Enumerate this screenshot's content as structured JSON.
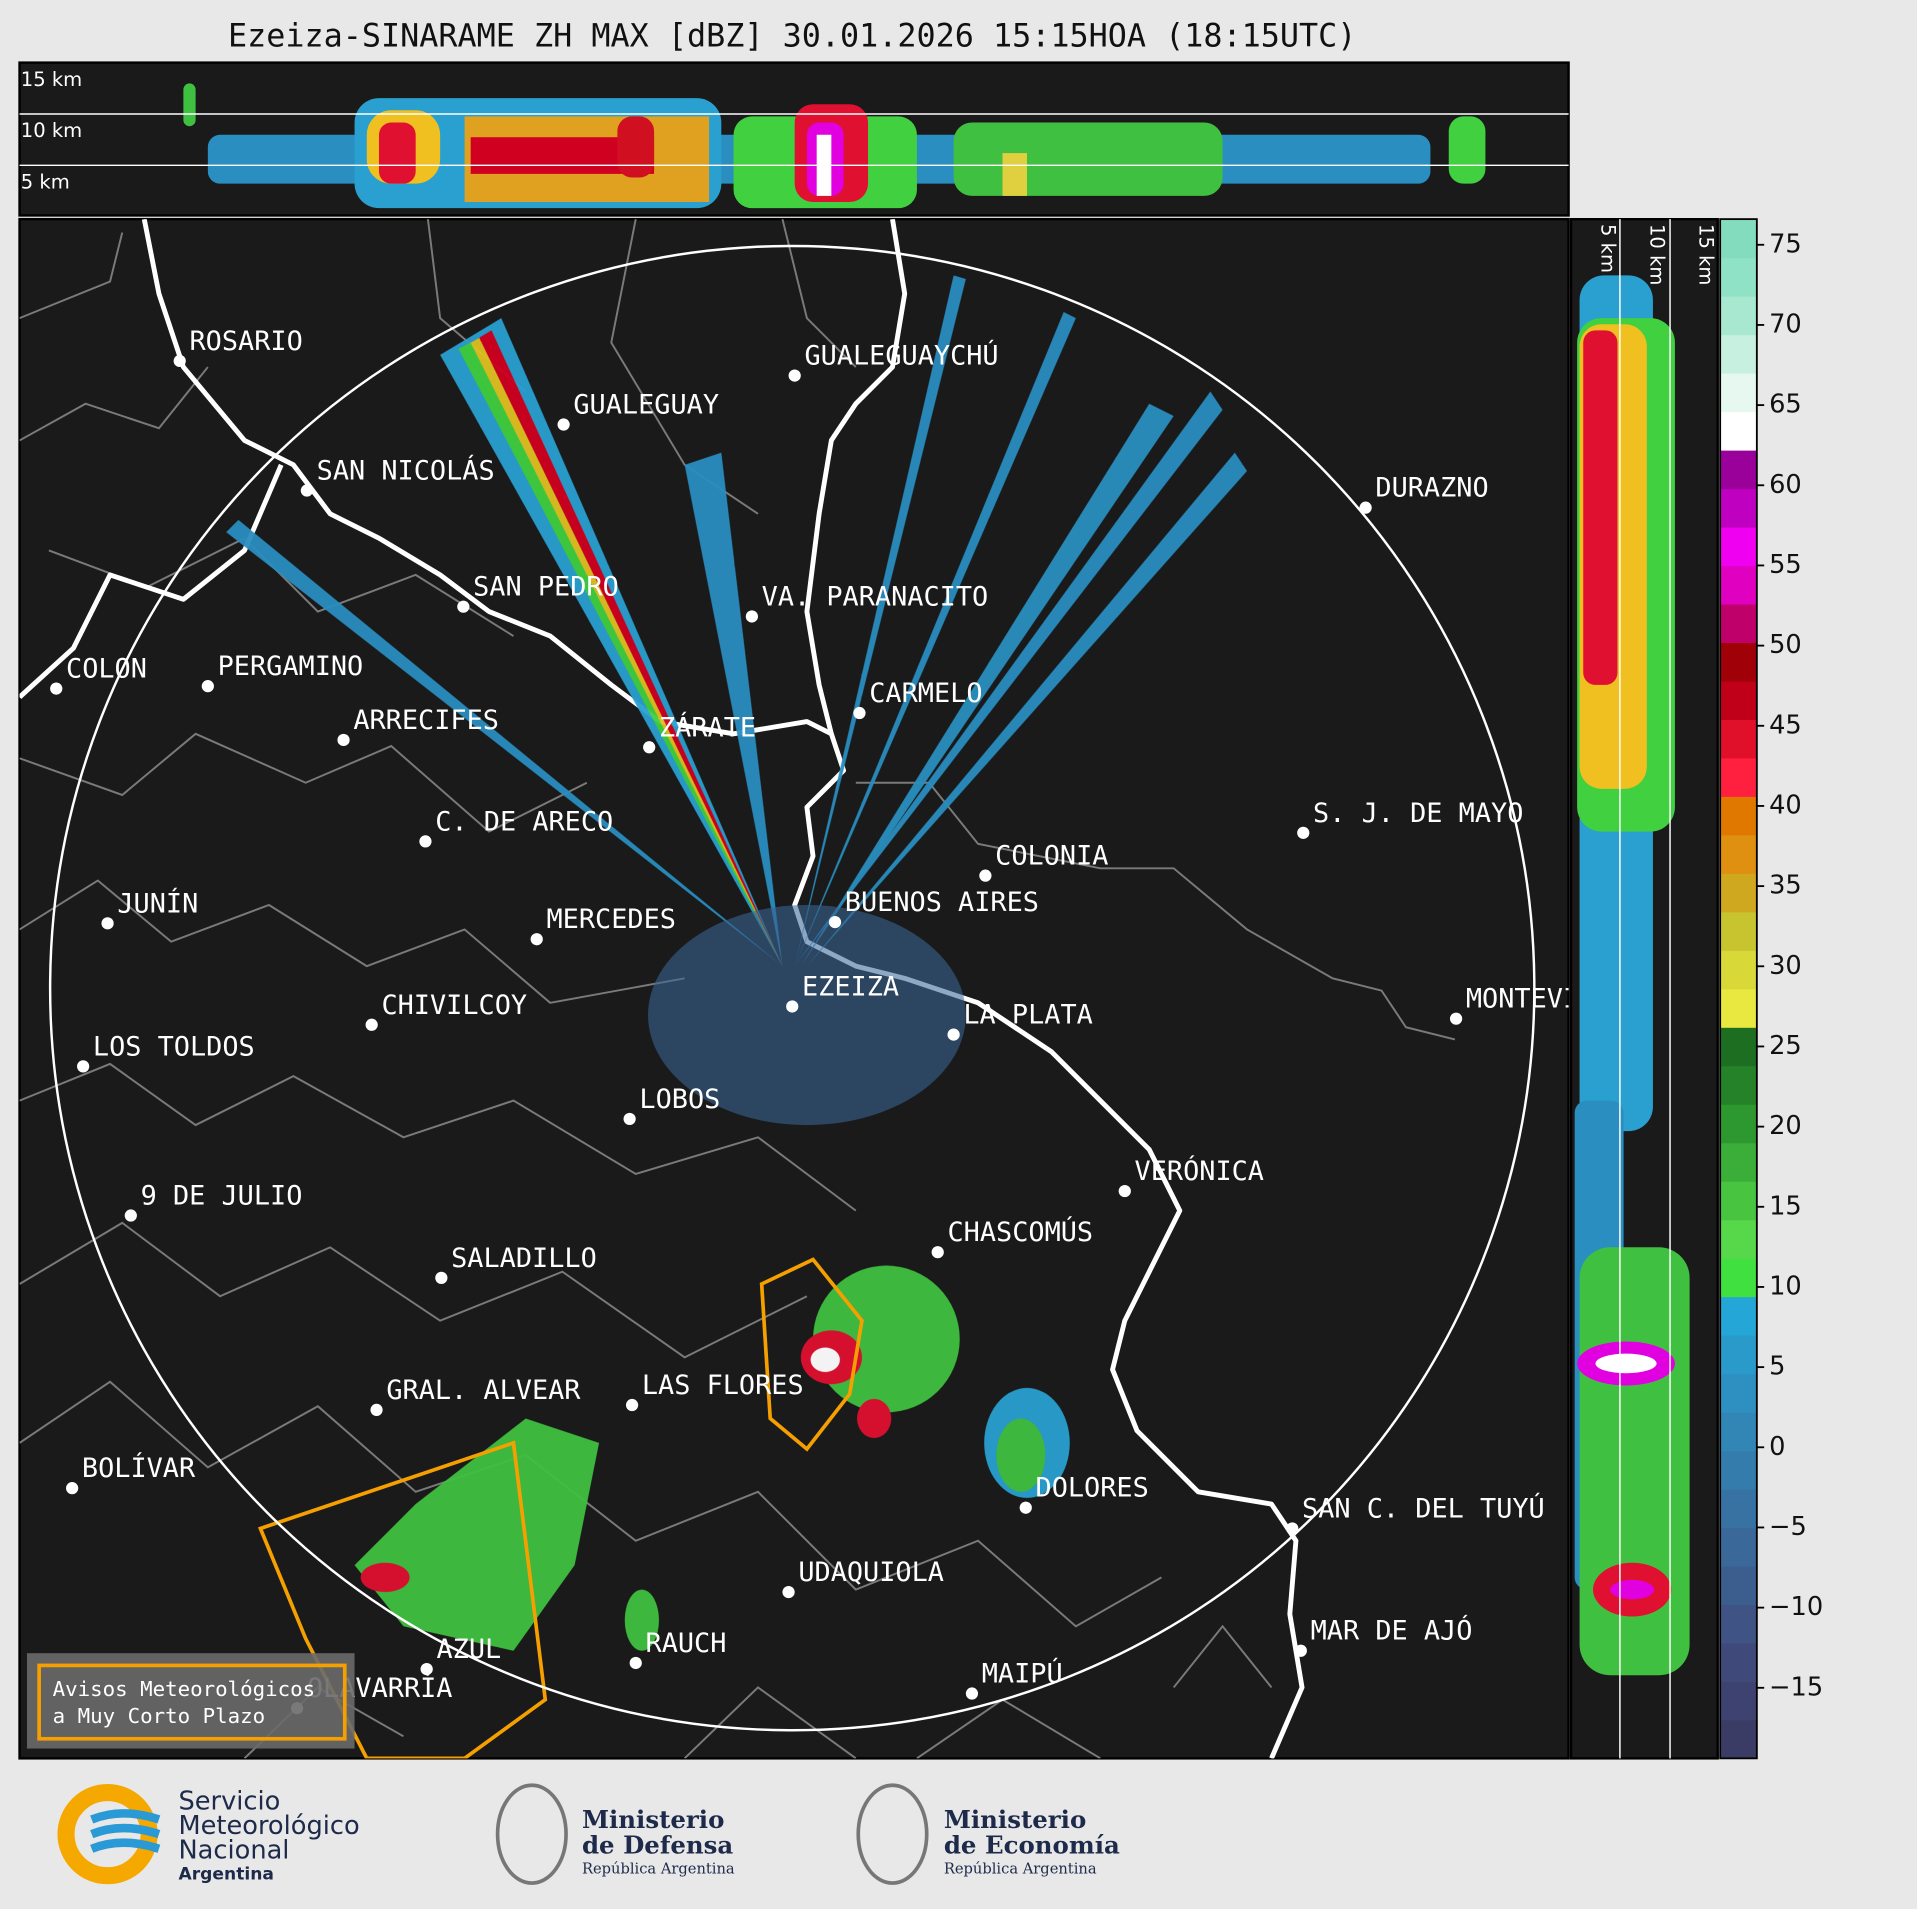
{
  "title": "Ezeiza-SINARAME ZH MAX [dBZ] 30.01.2026 15:15HOA (18:15UTC)",
  "top_panel": {
    "labels": [
      "15 km",
      "10 km",
      "5 km"
    ]
  },
  "side_panel": {
    "labels": [
      "5 km",
      "10 km",
      "15 km"
    ]
  },
  "map": {
    "cities": [
      "ROSARIO",
      "GUALEGUAYCHÚ",
      "GUALEGUAY",
      "SAN NICOLÁS",
      "DURAZNO",
      "SAN PEDRO",
      "VA. PARANACITO",
      "COLON",
      "PERGAMINO",
      "CARMELO",
      "ARRECIFES",
      "ZÁRATE",
      "C. DE ARECO",
      "S. J. DE MAYO",
      "COLONIA",
      "JUNÍN",
      "BUENOS AIRES",
      "MERCEDES",
      "EZEIZA",
      "MONTEVIDEO",
      "CHIVILCOY",
      "LA PLATA",
      "LOS TOLDOS",
      "LOBOS",
      "VERÓNICA",
      "9 DE JULIO",
      "CHASCOMÚS",
      "SALADILLO",
      "GRAL. ALVEAR",
      "LAS FLORES",
      "BOLÍVAR",
      "DOLORES",
      "SAN C. DEL TUYÚ",
      "UDAQUIOLA",
      "MAR DE AJÓ",
      "AZUL",
      "RAUCH",
      "MAIPÚ",
      "OLAVARRÍA"
    ]
  },
  "colorbar": {
    "lim": [
      -19.4,
      76.6
    ],
    "ticks": [
      {
        "value": -15,
        "label": "−15"
      },
      {
        "value": -10,
        "label": "−10"
      },
      {
        "value": -5,
        "label": "−5"
      },
      0,
      5,
      10,
      15,
      20,
      25,
      30,
      35,
      40,
      45,
      50,
      55,
      60,
      65,
      70,
      75
    ],
    "colors": [
      "#3a3c66",
      "#3d4270",
      "#404a7a",
      "#3f5484",
      "#3c5e8e",
      "#3a6898",
      "#3772a2",
      "#347cac",
      "#3186b6",
      "#2e90c0",
      "#2a9acb",
      "#24a6d6",
      "#40e040",
      "#56d84a",
      "#48c440",
      "#3aae38",
      "#2e9830",
      "#268228",
      "#1e6e22",
      "#e8e840",
      "#d8d838",
      "#c8c430",
      "#d0a820",
      "#e09010",
      "#e07800",
      "#ff2040",
      "#e0102a",
      "#c00018",
      "#a00008",
      "#c0006a",
      "#e000c0",
      "#f000f0",
      "#c000c0",
      "#9a009a",
      "#ffffff",
      "#e6f8f0",
      "#c8f0e0",
      "#a8e8d0",
      "#90e2c6",
      "#84dcbe"
    ]
  },
  "legend": {
    "lines": [
      "Avisos Meteorológicos",
      "a Muy Corto Plazo"
    ]
  },
  "logos": {
    "smn": [
      "Servicio",
      "Meteorológico",
      "Nacional",
      "Argentina"
    ],
    "defensa": [
      "Ministerio",
      "de Defensa",
      "República Argentina"
    ],
    "economia": [
      "Ministerio",
      "de Economía",
      "República Argentina"
    ]
  }
}
